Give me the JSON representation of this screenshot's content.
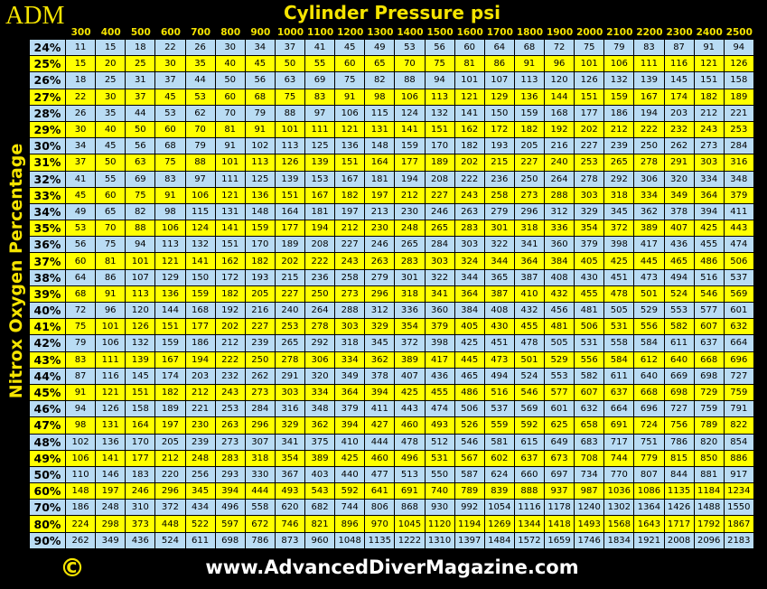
{
  "header": {
    "logo": "ADM",
    "title": "Cylinder Pressure psi",
    "copyright": "©"
  },
  "table": {
    "row_axis_label": "Nitrox Oxygen Percentage",
    "columns": [
      300,
      400,
      500,
      600,
      700,
      800,
      900,
      1000,
      1100,
      1200,
      1300,
      1400,
      1500,
      1600,
      1700,
      1800,
      1900,
      2000,
      2100,
      2200,
      2300,
      2400,
      2500
    ],
    "rows": [
      {
        "label": "24%",
        "values": [
          11,
          15,
          18,
          22,
          26,
          30,
          34,
          37,
          41,
          45,
          49,
          53,
          56,
          60,
          64,
          68,
          72,
          75,
          79,
          83,
          87,
          91,
          94
        ]
      },
      {
        "label": "25%",
        "values": [
          15,
          20,
          25,
          30,
          35,
          40,
          45,
          50,
          55,
          60,
          65,
          70,
          75,
          81,
          86,
          91,
          96,
          101,
          106,
          111,
          116,
          121,
          126
        ]
      },
      {
        "label": "26%",
        "values": [
          18,
          25,
          31,
          37,
          44,
          50,
          56,
          63,
          69,
          75,
          82,
          88,
          94,
          101,
          107,
          113,
          120,
          126,
          132,
          139,
          145,
          151,
          158
        ]
      },
      {
        "label": "27%",
        "values": [
          22,
          30,
          37,
          45,
          53,
          60,
          68,
          75,
          83,
          91,
          98,
          106,
          113,
          121,
          129,
          136,
          144,
          151,
          159,
          167,
          174,
          182,
          189
        ]
      },
      {
        "label": "28%",
        "values": [
          26,
          35,
          44,
          53,
          62,
          70,
          79,
          88,
          97,
          106,
          115,
          124,
          132,
          141,
          150,
          159,
          168,
          177,
          186,
          194,
          203,
          212,
          221
        ]
      },
      {
        "label": "29%",
        "values": [
          30,
          40,
          50,
          60,
          70,
          81,
          91,
          101,
          111,
          121,
          131,
          141,
          151,
          162,
          172,
          182,
          192,
          202,
          212,
          222,
          232,
          243,
          253
        ]
      },
      {
        "label": "30%",
        "values": [
          34,
          45,
          56,
          68,
          79,
          91,
          102,
          113,
          125,
          136,
          148,
          159,
          170,
          182,
          193,
          205,
          216,
          227,
          239,
          250,
          262,
          273,
          284
        ]
      },
      {
        "label": "31%",
        "values": [
          37,
          50,
          63,
          75,
          88,
          101,
          113,
          126,
          139,
          151,
          164,
          177,
          189,
          202,
          215,
          227,
          240,
          253,
          265,
          278,
          291,
          303,
          316
        ]
      },
      {
        "label": "32%",
        "values": [
          41,
          55,
          69,
          83,
          97,
          111,
          125,
          139,
          153,
          167,
          181,
          194,
          208,
          222,
          236,
          250,
          264,
          278,
          292,
          306,
          320,
          334,
          348
        ]
      },
      {
        "label": "33%",
        "values": [
          45,
          60,
          75,
          91,
          106,
          121,
          136,
          151,
          167,
          182,
          197,
          212,
          227,
          243,
          258,
          273,
          288,
          303,
          318,
          334,
          349,
          364,
          379
        ]
      },
      {
        "label": "34%",
        "values": [
          49,
          65,
          82,
          98,
          115,
          131,
          148,
          164,
          181,
          197,
          213,
          230,
          246,
          263,
          279,
          296,
          312,
          329,
          345,
          362,
          378,
          394,
          411
        ]
      },
      {
        "label": "35%",
        "values": [
          53,
          70,
          88,
          106,
          124,
          141,
          159,
          177,
          194,
          212,
          230,
          248,
          265,
          283,
          301,
          318,
          336,
          354,
          372,
          389,
          407,
          425,
          443
        ]
      },
      {
        "label": "36%",
        "values": [
          56,
          75,
          94,
          113,
          132,
          151,
          170,
          189,
          208,
          227,
          246,
          265,
          284,
          303,
          322,
          341,
          360,
          379,
          398,
          417,
          436,
          455,
          474
        ]
      },
      {
        "label": "37%",
        "values": [
          60,
          81,
          101,
          121,
          141,
          162,
          182,
          202,
          222,
          243,
          263,
          283,
          303,
          324,
          344,
          364,
          384,
          405,
          425,
          445,
          465,
          486,
          506
        ]
      },
      {
        "label": "38%",
        "values": [
          64,
          86,
          107,
          129,
          150,
          172,
          193,
          215,
          236,
          258,
          279,
          301,
          322,
          344,
          365,
          387,
          408,
          430,
          451,
          473,
          494,
          516,
          537
        ]
      },
      {
        "label": "39%",
        "values": [
          68,
          91,
          113,
          136,
          159,
          182,
          205,
          227,
          250,
          273,
          296,
          318,
          341,
          364,
          387,
          410,
          432,
          455,
          478,
          501,
          524,
          546,
          569
        ]
      },
      {
        "label": "40%",
        "values": [
          72,
          96,
          120,
          144,
          168,
          192,
          216,
          240,
          264,
          288,
          312,
          336,
          360,
          384,
          408,
          432,
          456,
          481,
          505,
          529,
          553,
          577,
          601
        ]
      },
      {
        "label": "41%",
        "values": [
          75,
          101,
          126,
          151,
          177,
          202,
          227,
          253,
          278,
          303,
          329,
          354,
          379,
          405,
          430,
          455,
          481,
          506,
          531,
          556,
          582,
          607,
          632
        ]
      },
      {
        "label": "42%",
        "values": [
          79,
          106,
          132,
          159,
          186,
          212,
          239,
          265,
          292,
          318,
          345,
          372,
          398,
          425,
          451,
          478,
          505,
          531,
          558,
          584,
          611,
          637,
          664
        ]
      },
      {
        "label": "43%",
        "values": [
          83,
          111,
          139,
          167,
          194,
          222,
          250,
          278,
          306,
          334,
          362,
          389,
          417,
          445,
          473,
          501,
          529,
          556,
          584,
          612,
          640,
          668,
          696
        ]
      },
      {
        "label": "44%",
        "values": [
          87,
          116,
          145,
          174,
          203,
          232,
          262,
          291,
          320,
          349,
          378,
          407,
          436,
          465,
          494,
          524,
          553,
          582,
          611,
          640,
          669,
          698,
          727
        ]
      },
      {
        "label": "45%",
        "values": [
          91,
          121,
          151,
          182,
          212,
          243,
          273,
          303,
          334,
          364,
          394,
          425,
          455,
          486,
          516,
          546,
          577,
          607,
          637,
          668,
          698,
          729,
          759
        ]
      },
      {
        "label": "46%",
        "values": [
          94,
          126,
          158,
          189,
          221,
          253,
          284,
          316,
          348,
          379,
          411,
          443,
          474,
          506,
          537,
          569,
          601,
          632,
          664,
          696,
          727,
          759,
          791
        ]
      },
      {
        "label": "47%",
        "values": [
          98,
          131,
          164,
          197,
          230,
          263,
          296,
          329,
          362,
          394,
          427,
          460,
          493,
          526,
          559,
          592,
          625,
          658,
          691,
          724,
          756,
          789,
          822
        ]
      },
      {
        "label": "48%",
        "values": [
          102,
          136,
          170,
          205,
          239,
          273,
          307,
          341,
          375,
          410,
          444,
          478,
          512,
          546,
          581,
          615,
          649,
          683,
          717,
          751,
          786,
          820,
          854
        ]
      },
      {
        "label": "49%",
        "values": [
          106,
          141,
          177,
          212,
          248,
          283,
          318,
          354,
          389,
          425,
          460,
          496,
          531,
          567,
          602,
          637,
          673,
          708,
          744,
          779,
          815,
          850,
          886
        ]
      },
      {
        "label": "50%",
        "values": [
          110,
          146,
          183,
          220,
          256,
          293,
          330,
          367,
          403,
          440,
          477,
          513,
          550,
          587,
          624,
          660,
          697,
          734,
          770,
          807,
          844,
          881,
          917
        ]
      },
      {
        "label": "60%",
        "values": [
          148,
          197,
          246,
          296,
          345,
          394,
          444,
          493,
          543,
          592,
          641,
          691,
          740,
          789,
          839,
          888,
          937,
          987,
          1036,
          1086,
          1135,
          1184,
          1234
        ]
      },
      {
        "label": "70%",
        "values": [
          186,
          248,
          310,
          372,
          434,
          496,
          558,
          620,
          682,
          744,
          806,
          868,
          930,
          992,
          1054,
          1116,
          1178,
          1240,
          1302,
          1364,
          1426,
          1488,
          1550
        ]
      },
      {
        "label": "80%",
        "values": [
          224,
          298,
          373,
          448,
          522,
          597,
          672,
          746,
          821,
          896,
          970,
          1045,
          1120,
          1194,
          1269,
          1344,
          1418,
          1493,
          1568,
          1643,
          1717,
          1792,
          1867
        ]
      },
      {
        "label": "90%",
        "values": [
          262,
          349,
          436,
          524,
          611,
          698,
          786,
          873,
          960,
          1048,
          1135,
          1222,
          1310,
          1397,
          1484,
          1572,
          1659,
          1746,
          1834,
          1921,
          2008,
          2096,
          2183
        ]
      }
    ]
  },
  "footer": {
    "url": "www.AdvancedDiverMagazine.com"
  }
}
